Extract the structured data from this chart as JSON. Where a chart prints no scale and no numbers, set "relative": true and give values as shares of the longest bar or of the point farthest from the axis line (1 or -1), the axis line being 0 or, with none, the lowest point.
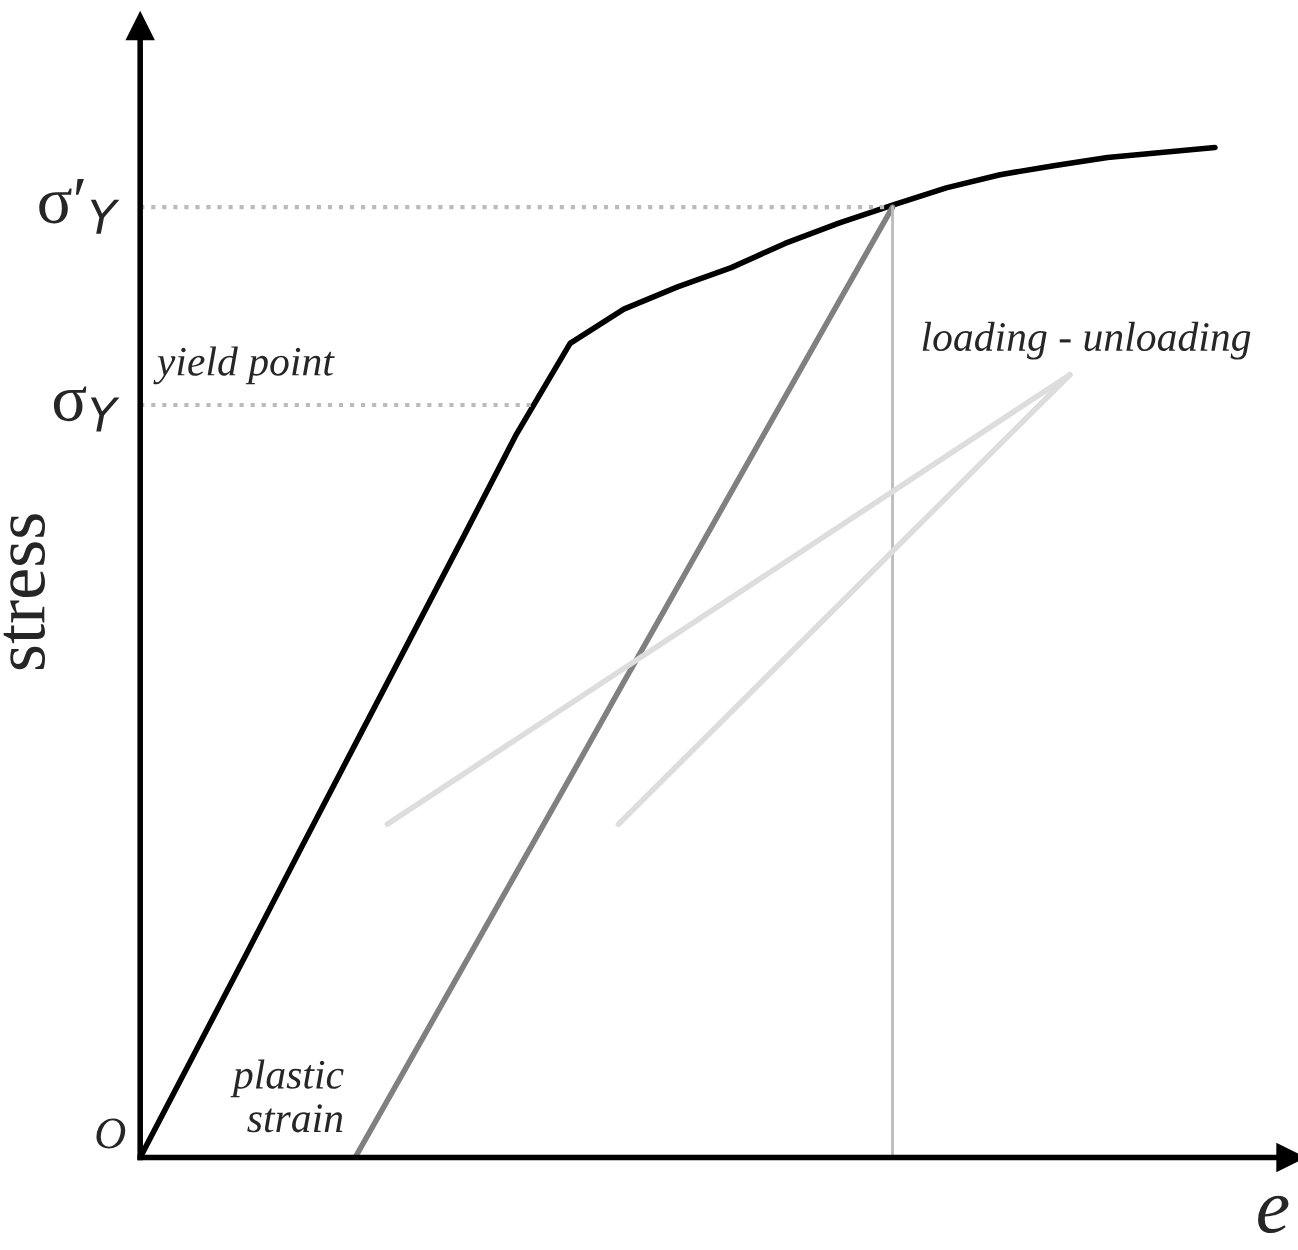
{
  "chart_data": {
    "type": "line",
    "relative": true,
    "xlabel": "e",
    "ylabel": "stress",
    "grid": false,
    "legend": false,
    "marker": "none",
    "line_style": "solid",
    "categories": [
      null,
      null,
      null,
      null,
      null,
      null,
      null,
      null,
      null,
      null,
      null,
      null,
      null,
      null,
      null,
      null,
      null,
      null,
      null,
      null,
      null
    ],
    "series": [
      {
        "color": "#000000",
        "values": [
          0,
          0.102,
          0.204,
          0.307,
          0.409,
          0.511,
          0.613,
          0.716,
          0.806,
          0.84,
          0.862,
          0.881,
          0.905,
          0.925,
          0.943,
          0.96,
          0.973,
          0.982,
          0.99,
          0.995,
          1
        ]
      },
      {
        "color": "#808080",
        "values": [
          null,
          null,
          null,
          null,
          0,
          0.094,
          0.188,
          0.282,
          0.376,
          0.471,
          0.565,
          0.659,
          0.753,
          0.847,
          0.941,
          null,
          null,
          null,
          null,
          null,
          null
        ]
      }
    ],
    "ref_lines": [
      {
        "axis": "y",
        "value": 0.745,
        "label": "σ$_{Y}$",
        "color": "#bbbbbb",
        "line_style": "dotted"
      },
      {
        "axis": "y",
        "value": 0.941,
        "label": "σ′$_{Y}$",
        "color": "#bbbbbb",
        "line_style": "dotted"
      }
    ],
    "annotations": [
      "O",
      "yield point",
      "plastic strain",
      "loading - unloading"
    ]
  }
}
